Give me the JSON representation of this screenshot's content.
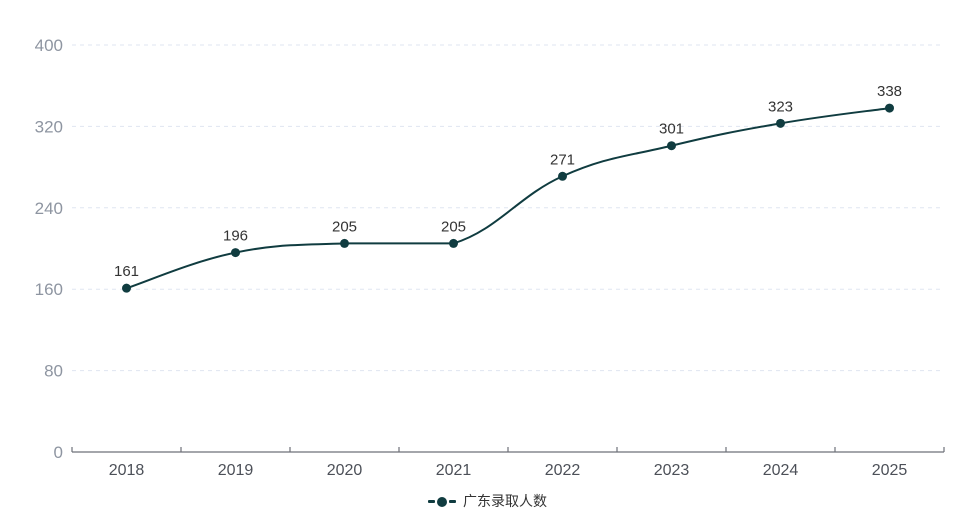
{
  "chart_data": {
    "type": "line",
    "title": "",
    "categories": [
      "2018",
      "2019",
      "2020",
      "2021",
      "2022",
      "2023",
      "2024",
      "2025"
    ],
    "series": [
      {
        "name": "广东录取人数",
        "values": [
          161,
          196,
          205,
          205,
          271,
          301,
          323,
          338
        ],
        "color": "#103c40",
        "smooth": true,
        "show_point_labels": true
      }
    ],
    "ylim": [
      0,
      400
    ],
    "yticks": [
      0,
      80,
      160,
      240,
      320,
      400
    ],
    "grid": {
      "horizontal": true,
      "style": "dashed",
      "color": "#dfe5f1"
    },
    "legend": {
      "position": "bottom",
      "entries": [
        "广东录取人数"
      ]
    },
    "axis": {
      "line_color": "#6e7079",
      "tick_color": "#6e7079",
      "x_label_color": "#4c5058",
      "y_label_color": "#8e95a1",
      "value_label_color": "#343434"
    },
    "background": "#ffffff"
  }
}
